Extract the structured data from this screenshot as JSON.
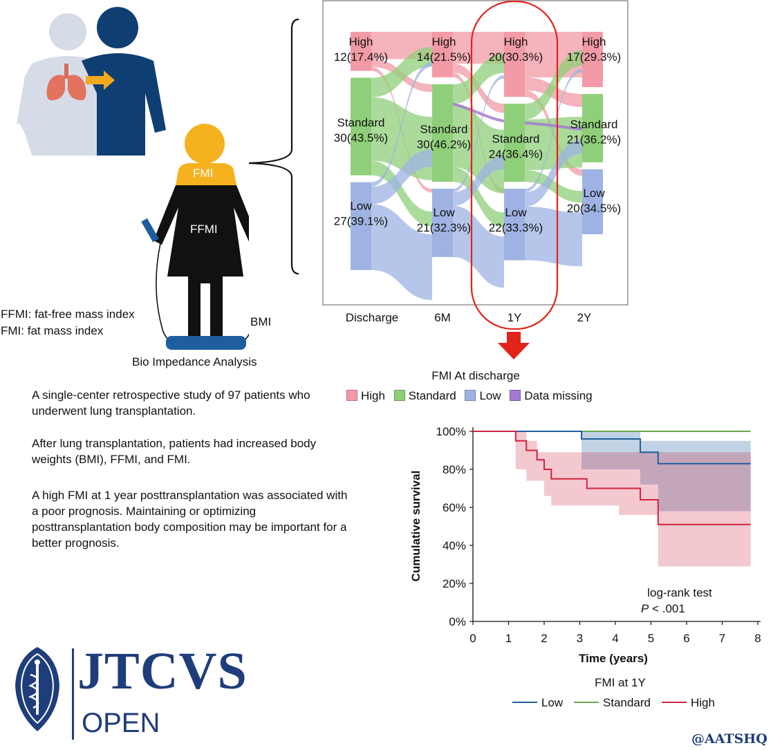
{
  "definitions": {
    "ffmi": "FFMI: fat-free mass index",
    "fmi": "FMI: fat mass index"
  },
  "figure_labels": {
    "fmi": "FMI",
    "ffmi": "FFMI",
    "bmi": "BMI",
    "bia": "Bio Impedance Analysis"
  },
  "summary": [
    "A single-center retrospective study of 97 patients who underwent lung transplantation.",
    "After lung transplantation, patients had increased body weights (BMI), FFMI, and FMI.",
    "A high FMI at 1 year posttransplantation was associated with a poor prognosis. Maintaining or optimizing posttransplantation body composition may be important for a better prognosis."
  ],
  "brand": {
    "logo": "JTCVS",
    "sub": "OPEN",
    "handle": "@AATSHQ"
  },
  "colors": {
    "high": "#f29aa6",
    "standard": "#8fcf79",
    "low": "#9eb3e3",
    "missing": "#a57ad1",
    "km_low": "#1f5e9e",
    "km_standard": "#6aa84f",
    "km_high": "#d0233f",
    "highlight": "#e2231a",
    "navy": "#0f3e73"
  },
  "chart_data": [
    {
      "type": "sankey",
      "x_categories": [
        "Discharge",
        "6M",
        "1Y",
        "2Y"
      ],
      "nodes": [
        {
          "time": "Discharge",
          "level": "High",
          "count": "12(17.4%)"
        },
        {
          "time": "Discharge",
          "level": "Standard",
          "count": "30(43.5%)"
        },
        {
          "time": "Discharge",
          "level": "Low",
          "count": "27(39.1%)"
        },
        {
          "time": "6M",
          "level": "High",
          "count": "14(21.5%)"
        },
        {
          "time": "6M",
          "level": "Standard",
          "count": "30(46.2%)"
        },
        {
          "time": "6M",
          "level": "Low",
          "count": "21(32.3%)"
        },
        {
          "time": "1Y",
          "level": "High",
          "count": "20(30.3%)"
        },
        {
          "time": "1Y",
          "level": "Standard",
          "count": "24(36.4%)"
        },
        {
          "time": "1Y",
          "level": "Low",
          "count": "22(33.3%)"
        },
        {
          "time": "2Y",
          "level": "High",
          "count": "17(29.3%)"
        },
        {
          "time": "2Y",
          "level": "Standard",
          "count": "21(36.2%)"
        },
        {
          "time": "2Y",
          "level": "Low",
          "count": "20(34.5%)"
        }
      ],
      "highlighted": "1Y",
      "legend_title": "FMI At discharge",
      "legend": [
        "High",
        "Standard",
        "Low",
        "Data missing"
      ]
    },
    {
      "type": "line",
      "ylabel": "Cumulative survival",
      "xlabel": "Time (years)",
      "xlim": [
        0,
        8
      ],
      "ylim": [
        0,
        100
      ],
      "x_ticks": [
        "0",
        "1",
        "2",
        "3",
        "4",
        "5",
        "6",
        "7",
        "8"
      ],
      "y_ticks": [
        "0%",
        "20%",
        "40%",
        "60%",
        "80%",
        "100%"
      ],
      "annotation": "log-rank test",
      "annotation_p": "P",
      "annotation_rest": " < .001",
      "legend_title": "FMI at 1Y",
      "series": [
        {
          "name": "Low",
          "points": [
            [
              0,
              100
            ],
            [
              3.05,
              100
            ],
            [
              3.05,
              96
            ],
            [
              4.7,
              96
            ],
            [
              4.7,
              89
            ],
            [
              5.2,
              89
            ],
            [
              5.2,
              83
            ],
            [
              7.8,
              83
            ]
          ],
          "ci_upper": [
            [
              3.05,
              100
            ],
            [
              4.7,
              100
            ],
            [
              4.7,
              95
            ],
            [
              7.8,
              95
            ]
          ],
          "ci_lower": [
            [
              3.05,
              80
            ],
            [
              4.7,
              80
            ],
            [
              4.7,
              72
            ],
            [
              5.2,
              72
            ],
            [
              5.2,
              58
            ],
            [
              7.8,
              58
            ]
          ]
        },
        {
          "name": "Standard",
          "points": [
            [
              0,
              100
            ],
            [
              7.8,
              100
            ]
          ]
        },
        {
          "name": "High",
          "points": [
            [
              0,
              100
            ],
            [
              1.2,
              100
            ],
            [
              1.2,
              95
            ],
            [
              1.5,
              95
            ],
            [
              1.5,
              90
            ],
            [
              1.8,
              90
            ],
            [
              1.8,
              85
            ],
            [
              2.0,
              85
            ],
            [
              2.0,
              80
            ],
            [
              2.2,
              80
            ],
            [
              2.2,
              75
            ],
            [
              3.2,
              75
            ],
            [
              3.2,
              70
            ],
            [
              4.7,
              70
            ],
            [
              4.7,
              64
            ],
            [
              5.2,
              64
            ],
            [
              5.2,
              51
            ],
            [
              7.8,
              51
            ]
          ],
          "ci_upper": [
            [
              1.2,
              100
            ],
            [
              1.5,
              100
            ],
            [
              1.5,
              95
            ],
            [
              1.8,
              95
            ],
            [
              1.8,
              89
            ],
            [
              7.8,
              89
            ],
            [
              7.8,
              73
            ]
          ],
          "ci_lower": [
            [
              1.2,
              80
            ],
            [
              1.5,
              80
            ],
            [
              1.5,
              74
            ],
            [
              2.0,
              74
            ],
            [
              2.0,
              66
            ],
            [
              2.2,
              66
            ],
            [
              2.2,
              61
            ],
            [
              4.1,
              61
            ],
            [
              4.1,
              56
            ],
            [
              5.2,
              56
            ],
            [
              5.2,
              29
            ],
            [
              7.8,
              29
            ]
          ]
        }
      ]
    }
  ]
}
